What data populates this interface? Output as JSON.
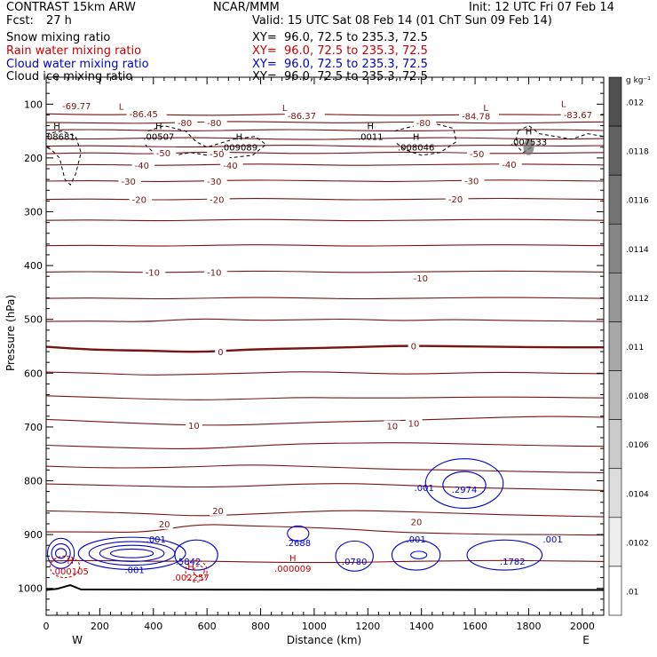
{
  "header": {
    "model": "CONTRAST 15km ARW",
    "org": "NCAR/MMM",
    "init": "Init: 12 UTC Fri 07 Feb 14",
    "fcst_label": "Fcst:",
    "fcst_value": "27 h",
    "valid": "Valid: 15 UTC Sat 08 Feb 14 (01 ChT Sun 09 Feb 14)"
  },
  "fields": [
    {
      "name": "Snow mixing ratio",
      "xy": "XY=  96.0, 72.5 to 235.3, 72.5",
      "color": "#000000"
    },
    {
      "name": "Rain water mixing ratio",
      "xy": "XY=  96.0, 72.5 to 235.3, 72.5",
      "color": "#cc0000"
    },
    {
      "name": "Cloud water mixing ratio",
      "xy": "XY=  96.0, 72.5 to 235.3, 72.5",
      "color": "#0000cc"
    },
    {
      "name": "Cloud ice mixing ratio",
      "xy": "XY=  96.0, 72.5 to 235.3, 72.5",
      "color": "#000000"
    }
  ],
  "chart_data": {
    "type": "contour",
    "xlabel": "Distance (km)",
    "ylabel": "Pressure (hPa)",
    "xlim": [
      0,
      2080
    ],
    "ylim": [
      1050,
      50
    ],
    "x_ticks": [
      0,
      200,
      400,
      600,
      800,
      1000,
      1200,
      1400,
      1600,
      1800,
      2000
    ],
    "y_ticks": [
      100,
      200,
      300,
      400,
      500,
      600,
      700,
      800,
      900,
      1000
    ],
    "x_end_labels": {
      "left": "W",
      "right": "E"
    },
    "colors": {
      "temperature": "#7a1414",
      "rain": "#cc0000",
      "cloud_water": "#0000cc",
      "snow": "#000000",
      "ground": "#000000"
    },
    "colorbar": {
      "unit": "g kg⁻¹",
      "labels": [
        ".012",
        ".0118",
        ".0116",
        ".0114",
        ".0112",
        ".011",
        ".0108",
        ".0106",
        ".0104",
        ".0102",
        ".01"
      ]
    },
    "isotherms": [
      {
        "p": [
          118,
          120,
          119,
          121,
          120,
          118,
          120,
          121,
          120,
          119,
          120,
          119
        ]
      },
      {
        "p": [
          134,
          135,
          136,
          133,
          132,
          134,
          135,
          133,
          134,
          136,
          134,
          133
        ]
      },
      {
        "p": [
          148,
          147,
          149,
          150,
          148,
          147,
          149,
          150,
          149,
          148,
          147,
          149
        ]
      },
      {
        "p": [
          164,
          165,
          163,
          162,
          164,
          166,
          165,
          163,
          162,
          164,
          165,
          164
        ]
      },
      {
        "p": [
          178,
          177,
          179,
          180,
          177,
          176,
          178,
          179,
          177,
          176,
          178,
          177
        ]
      },
      {
        "p": [
          192,
          190,
          193,
          189,
          190,
          192,
          191,
          189,
          190,
          192,
          191,
          190
        ]
      },
      {
        "p": [
          213,
          212,
          214,
          213,
          211,
          212,
          214,
          213,
          212,
          211,
          212,
          213
        ]
      },
      {
        "p": [
          243,
          242,
          244,
          243,
          241,
          242,
          243,
          244,
          242,
          241,
          242,
          243
        ]
      },
      {
        "p": [
          277,
          276,
          278,
          277,
          275,
          276,
          278,
          277,
          276,
          275,
          276,
          277
        ]
      },
      {
        "p": [
          316,
          315,
          317,
          316,
          314,
          315,
          317,
          316,
          315,
          314,
          315,
          316
        ]
      },
      {
        "p": [
          363,
          362,
          364,
          363,
          361,
          362,
          364,
          363,
          362,
          361,
          362,
          363
        ]
      },
      {
        "p": [
          412,
          411,
          413,
          412,
          410,
          411,
          413,
          412,
          411,
          410,
          411,
          412
        ]
      },
      {
        "p": [
          461,
          460,
          462,
          461,
          459,
          460,
          462,
          461,
          460,
          459,
          460,
          461
        ]
      },
      {
        "p": [
          504,
          503,
          505,
          498,
          502,
          501,
          499,
          503,
          500,
          502,
          503,
          504
        ]
      },
      {
        "p": [
          551,
          557,
          558,
          561,
          556,
          554,
          552,
          549,
          550,
          551,
          552,
          552
        ],
        "bold": true
      },
      {
        "p": [
          598,
          600,
          604,
          602,
          600,
          597,
          599,
          602,
          600,
          598,
          600,
          601
        ]
      },
      {
        "p": [
          642,
          645,
          648,
          650,
          648,
          645,
          646,
          646,
          645,
          644,
          645,
          646
        ]
      },
      {
        "p": [
          686,
          690,
          694,
          697,
          696,
          692,
          690,
          688,
          685,
          682,
          680,
          682
        ]
      },
      {
        "p": [
          734,
          737,
          740,
          741,
          736,
          731,
          730,
          729,
          731,
          733,
          735,
          736
        ]
      },
      {
        "p": [
          773,
          776,
          776,
          774,
          770,
          773,
          776,
          779,
          780,
          782,
          784,
          785
        ]
      },
      {
        "p": [
          806,
          808,
          810,
          812,
          810,
          806,
          805,
          808,
          812,
          814,
          816,
          818
        ]
      },
      {
        "p": [
          856,
          858,
          861,
          866,
          862,
          858,
          855,
          857,
          860,
          863,
          865,
          867
        ]
      },
      {
        "p": [
          895,
          895,
          896,
          880,
          884,
          886,
          890,
          896,
          898,
          900,
          900,
          901
        ]
      },
      {
        "p": [
          949,
          948,
          950,
          949,
          951,
          952,
          952,
          950,
          949,
          948,
          949,
          950
        ]
      }
    ],
    "isotherm_labels": [
      {
        "text": "-69.77",
        "x": 60,
        "p": 103
      },
      {
        "text": "-86.45",
        "x": 310,
        "p": 118
      },
      {
        "text": "-86.37",
        "x": 900,
        "p": 121
      },
      {
        "text": "-84.78",
        "x": 1550,
        "p": 122
      },
      {
        "text": "-83.67",
        "x": 1930,
        "p": 119
      },
      {
        "text": "-80",
        "x": 490,
        "p": 134
      },
      {
        "text": "-80",
        "x": 600,
        "p": 134
      },
      {
        "text": "-80",
        "x": 1380,
        "p": 134
      },
      {
        "text": "-50",
        "x": 410,
        "p": 190
      },
      {
        "text": "-50",
        "x": 610,
        "p": 192
      },
      {
        "text": "-50",
        "x": 1580,
        "p": 192
      },
      {
        "text": "-40",
        "x": 330,
        "p": 213
      },
      {
        "text": "-40",
        "x": 660,
        "p": 213
      },
      {
        "text": "-40",
        "x": 1700,
        "p": 212
      },
      {
        "text": "-30",
        "x": 280,
        "p": 243
      },
      {
        "text": "-30",
        "x": 600,
        "p": 243
      },
      {
        "text": "-30",
        "x": 1560,
        "p": 242
      },
      {
        "text": "-20",
        "x": 320,
        "p": 277
      },
      {
        "text": "-20",
        "x": 610,
        "p": 277
      },
      {
        "text": "-20",
        "x": 1500,
        "p": 276
      },
      {
        "text": "-10",
        "x": 370,
        "p": 412
      },
      {
        "text": "-10",
        "x": 600,
        "p": 412
      },
      {
        "text": "-10",
        "x": 1370,
        "p": 423
      },
      {
        "text": "0",
        "x": 640,
        "p": 560
      },
      {
        "text": "0",
        "x": 1360,
        "p": 549
      },
      {
        "text": "10",
        "x": 1270,
        "p": 698
      },
      {
        "text": "10",
        "x": 1350,
        "p": 693
      },
      {
        "text": "10",
        "x": 530,
        "p": 697
      },
      {
        "text": "20",
        "x": 420,
        "p": 880
      },
      {
        "text": "20",
        "x": 620,
        "p": 855
      },
      {
        "text": "20",
        "x": 1360,
        "p": 876
      }
    ],
    "cloud_labels": [
      {
        "text": ".001",
        "x": 410,
        "p": 908
      },
      {
        "text": ".001",
        "x": 330,
        "p": 965
      },
      {
        "text": ".001",
        "x": 1380,
        "p": 908
      },
      {
        "text": ".001",
        "x": 1890,
        "p": 908
      },
      {
        "text": ".001",
        "x": 1410,
        "p": 812
      },
      {
        "text": ".5842",
        "x": 530,
        "p": 949
      },
      {
        "text": ".2688",
        "x": 940,
        "p": 915
      },
      {
        "text": ".0780",
        "x": 1150,
        "p": 949
      },
      {
        "text": ".2974",
        "x": 1560,
        "p": 816
      },
      {
        "text": ".1782",
        "x": 1740,
        "p": 949
      }
    ],
    "highs": [
      {
        "label": "H",
        "value": ".008681",
        "x": 40,
        "p": 163,
        "c": "snow"
      },
      {
        "label": "H",
        "value": ".00507",
        "x": 420,
        "p": 163,
        "c": "snow"
      },
      {
        "label": "H",
        "value": ".009089",
        "x": 720,
        "p": 183,
        "c": "snow"
      },
      {
        "label": "H",
        "value": ".0011",
        "x": 1210,
        "p": 163,
        "c": "snow"
      },
      {
        "label": "H",
        "value": ".008046",
        "x": 1380,
        "p": 183,
        "c": "snow"
      },
      {
        "label": "H",
        "value": ".007533",
        "x": 1800,
        "p": 173,
        "c": "snow"
      },
      {
        "label": "H",
        "value": ".000105",
        "x": 90,
        "p": 971,
        "c": "rain"
      },
      {
        "label": "H",
        "value": ".002257",
        "x": 540,
        "p": 982,
        "c": "rain"
      },
      {
        "label": "H",
        "value": ".000009",
        "x": 920,
        "p": 966,
        "c": "rain"
      }
    ],
    "lows": [
      {
        "label": "L",
        "x": 280,
        "p": 110
      },
      {
        "label": "L",
        "x": 890,
        "p": 113
      },
      {
        "label": "L",
        "x": 1640,
        "p": 113
      },
      {
        "label": "L",
        "x": 1930,
        "p": 105
      }
    ]
  }
}
